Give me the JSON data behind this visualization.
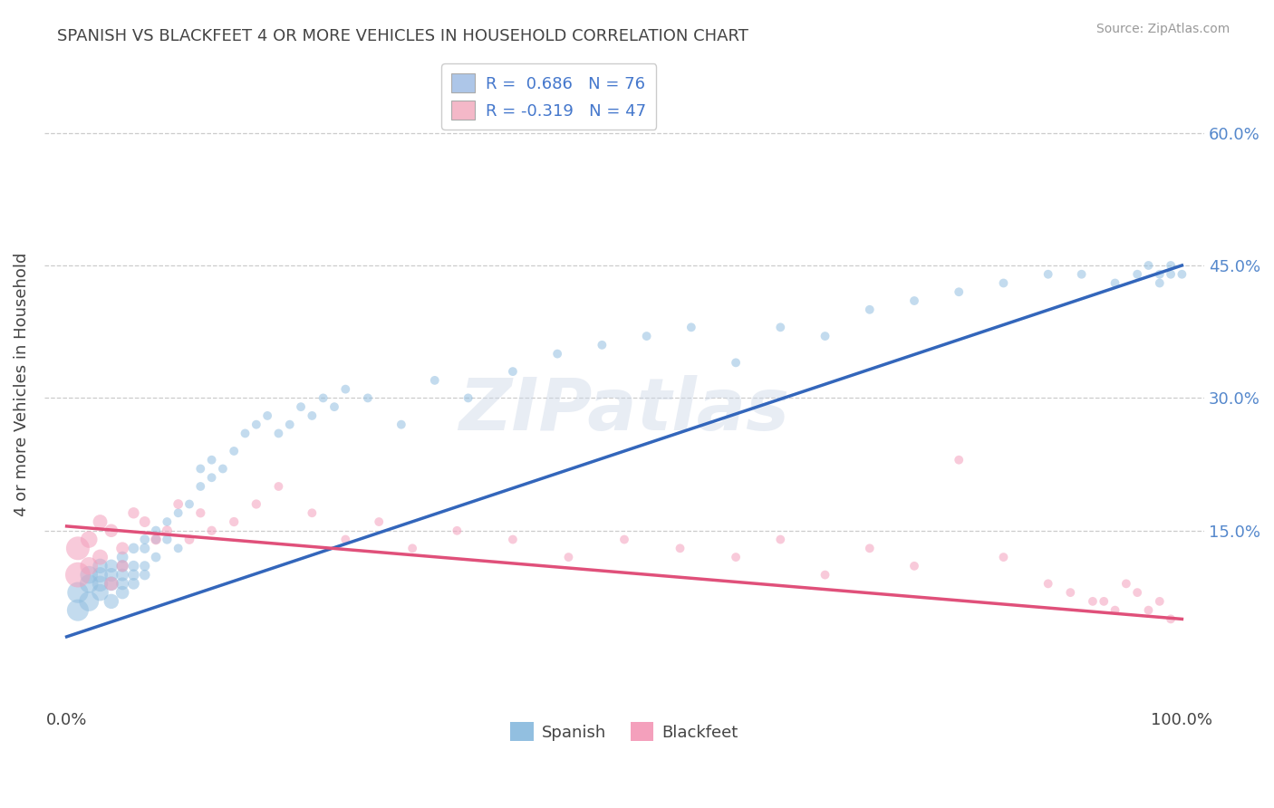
{
  "title": "SPANISH VS BLACKFEET 4 OR MORE VEHICLES IN HOUSEHOLD CORRELATION CHART",
  "source_text": "Source: ZipAtlas.com",
  "ylabel": "4 or more Vehicles in Household",
  "xlim": [
    -0.02,
    1.02
  ],
  "ylim": [
    -0.05,
    0.68
  ],
  "x_tick_labels": [
    "0.0%",
    "100.0%"
  ],
  "x_tick_pos": [
    0.0,
    1.0
  ],
  "y_tick_values": [
    0.15,
    0.3,
    0.45,
    0.6
  ],
  "y_tick_labels": [
    "15.0%",
    "30.0%",
    "45.0%",
    "60.0%"
  ],
  "watermark": "ZIPatlas",
  "legend_label1": "R =  0.686   N = 76",
  "legend_label2": "R = -0.319   N = 47",
  "legend_color1": "#adc6e8",
  "legend_color2": "#f4b8c8",
  "spanish_color": "#92bfe0",
  "blackfeet_color": "#f4a0bc",
  "spanish_line_color": "#3366bb",
  "blackfeet_line_color": "#e0507a",
  "background_color": "#ffffff",
  "grid_color": "#cccccc",
  "title_fontsize": 13,
  "tick_fontsize": 13,
  "ylabel_fontsize": 13,
  "legend_fontsize": 13,
  "spanish_x": [
    0.01,
    0.01,
    0.02,
    0.02,
    0.02,
    0.03,
    0.03,
    0.03,
    0.03,
    0.04,
    0.04,
    0.04,
    0.04,
    0.05,
    0.05,
    0.05,
    0.05,
    0.05,
    0.06,
    0.06,
    0.06,
    0.06,
    0.07,
    0.07,
    0.07,
    0.07,
    0.08,
    0.08,
    0.08,
    0.09,
    0.09,
    0.1,
    0.1,
    0.11,
    0.12,
    0.12,
    0.13,
    0.13,
    0.14,
    0.15,
    0.16,
    0.17,
    0.18,
    0.19,
    0.2,
    0.21,
    0.22,
    0.23,
    0.24,
    0.25,
    0.27,
    0.3,
    0.33,
    0.36,
    0.4,
    0.44,
    0.48,
    0.52,
    0.56,
    0.6,
    0.64,
    0.68,
    0.72,
    0.76,
    0.8,
    0.84,
    0.88,
    0.91,
    0.94,
    0.96,
    0.97,
    0.98,
    0.98,
    0.99,
    0.99,
    1.0
  ],
  "spanish_y": [
    0.06,
    0.08,
    0.07,
    0.09,
    0.1,
    0.08,
    0.09,
    0.1,
    0.11,
    0.07,
    0.09,
    0.1,
    0.11,
    0.08,
    0.09,
    0.1,
    0.11,
    0.12,
    0.09,
    0.1,
    0.11,
    0.13,
    0.1,
    0.11,
    0.13,
    0.14,
    0.12,
    0.14,
    0.15,
    0.14,
    0.16,
    0.13,
    0.17,
    0.18,
    0.2,
    0.22,
    0.21,
    0.23,
    0.22,
    0.24,
    0.26,
    0.27,
    0.28,
    0.26,
    0.27,
    0.29,
    0.28,
    0.3,
    0.29,
    0.31,
    0.3,
    0.27,
    0.32,
    0.3,
    0.33,
    0.35,
    0.36,
    0.37,
    0.38,
    0.34,
    0.38,
    0.37,
    0.4,
    0.41,
    0.42,
    0.43,
    0.44,
    0.44,
    0.43,
    0.44,
    0.45,
    0.43,
    0.44,
    0.44,
    0.45,
    0.44
  ],
  "spanish_size": [
    300,
    280,
    250,
    220,
    200,
    180,
    160,
    150,
    140,
    140,
    130,
    120,
    110,
    110,
    100,
    100,
    90,
    85,
    85,
    80,
    75,
    70,
    70,
    65,
    65,
    60,
    60,
    55,
    55,
    55,
    50,
    50,
    50,
    50,
    50,
    50,
    50,
    50,
    50,
    50,
    50,
    50,
    50,
    50,
    50,
    50,
    50,
    50,
    50,
    50,
    50,
    50,
    50,
    50,
    50,
    50,
    50,
    50,
    50,
    50,
    50,
    50,
    50,
    50,
    50,
    50,
    50,
    50,
    50,
    50,
    50,
    50,
    50,
    50,
    50,
    50
  ],
  "blackfeet_x": [
    0.01,
    0.01,
    0.02,
    0.02,
    0.03,
    0.03,
    0.04,
    0.04,
    0.05,
    0.05,
    0.06,
    0.07,
    0.08,
    0.09,
    0.1,
    0.11,
    0.12,
    0.13,
    0.15,
    0.17,
    0.19,
    0.22,
    0.25,
    0.28,
    0.31,
    0.35,
    0.4,
    0.45,
    0.5,
    0.55,
    0.6,
    0.64,
    0.68,
    0.72,
    0.76,
    0.8,
    0.84,
    0.88,
    0.9,
    0.92,
    0.93,
    0.94,
    0.95,
    0.96,
    0.97,
    0.98,
    0.99
  ],
  "blackfeet_y": [
    0.1,
    0.13,
    0.11,
    0.14,
    0.12,
    0.16,
    0.09,
    0.15,
    0.13,
    0.11,
    0.17,
    0.16,
    0.14,
    0.15,
    0.18,
    0.14,
    0.17,
    0.15,
    0.16,
    0.18,
    0.2,
    0.17,
    0.14,
    0.16,
    0.13,
    0.15,
    0.14,
    0.12,
    0.14,
    0.13,
    0.12,
    0.14,
    0.1,
    0.13,
    0.11,
    0.23,
    0.12,
    0.09,
    0.08,
    0.07,
    0.07,
    0.06,
    0.09,
    0.08,
    0.06,
    0.07,
    0.05
  ],
  "blackfeet_size": [
    400,
    350,
    200,
    180,
    150,
    130,
    120,
    110,
    100,
    90,
    80,
    75,
    70,
    65,
    60,
    60,
    55,
    55,
    55,
    55,
    50,
    50,
    50,
    50,
    50,
    50,
    50,
    50,
    50,
    50,
    50,
    50,
    50,
    50,
    50,
    50,
    50,
    50,
    50,
    50,
    50,
    50,
    50,
    50,
    50,
    50,
    50
  ],
  "spanish_line_x0": 0.0,
  "spanish_line_x1": 1.0,
  "spanish_line_y0": 0.03,
  "spanish_line_y1": 0.45,
  "blackfeet_line_x0": 0.0,
  "blackfeet_line_x1": 1.0,
  "blackfeet_line_y0": 0.155,
  "blackfeet_line_y1": 0.05
}
